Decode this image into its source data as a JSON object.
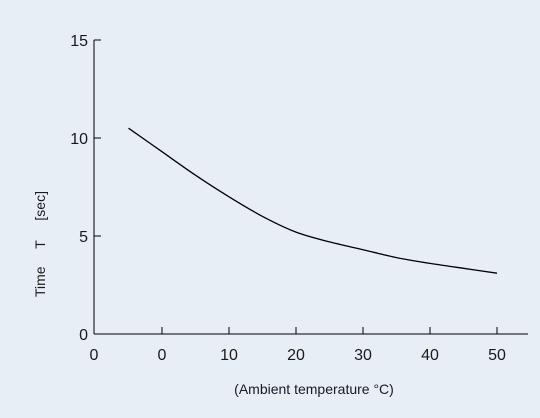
{
  "chart_data": {
    "type": "line",
    "title": "",
    "xlabel": "(Ambient temperature °C)",
    "ylabel_parts": [
      "Time",
      "T",
      "[sec]"
    ],
    "xlim": [
      -10,
      55
    ],
    "ylim": [
      0,
      15
    ],
    "x_ticks": [
      0,
      10,
      20,
      30,
      40,
      50
    ],
    "x_ticks_labels": [
      "0",
      "10",
      "20",
      "30",
      "40",
      "50"
    ],
    "x_origin_label": "0",
    "y_ticks": [
      0,
      5,
      10,
      15
    ],
    "y_ticks_labels": [
      "0",
      "5",
      "10",
      "15"
    ],
    "grid": false,
    "legend": "none",
    "line_color": "#000000",
    "background_color": "#e8eef6",
    "series": [
      {
        "x": [
          -5,
          0,
          5,
          10,
          15,
          20,
          25,
          30,
          35,
          40,
          45,
          50
        ],
        "y": [
          10.5,
          9.3,
          8.1,
          7.0,
          6.0,
          5.2,
          4.7,
          4.3,
          3.9,
          3.6,
          3.35,
          3.1
        ]
      }
    ]
  }
}
